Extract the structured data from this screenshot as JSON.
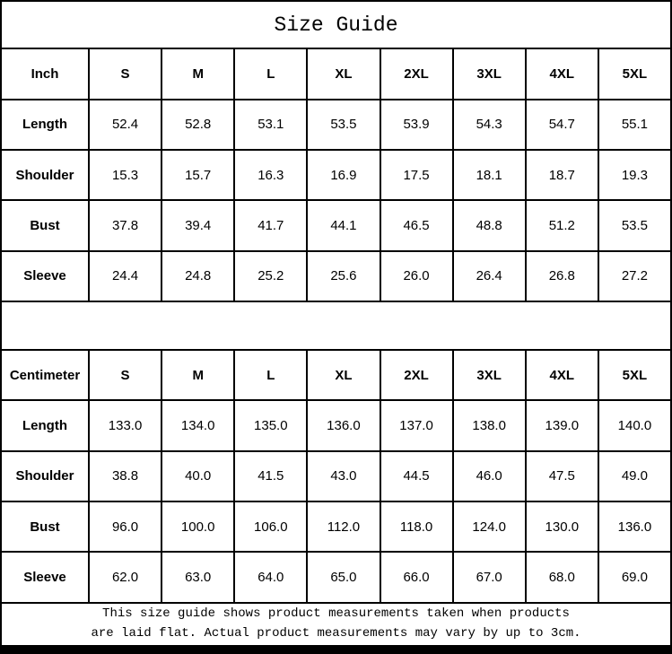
{
  "title": "Size Guide",
  "tables": [
    {
      "unit_label": "Inch",
      "sizes": [
        "S",
        "M",
        "L",
        "XL",
        "2XL",
        "3XL",
        "4XL",
        "5XL"
      ],
      "rows": [
        {
          "label": "Length",
          "values": [
            "52.4",
            "52.8",
            "53.1",
            "53.5",
            "53.9",
            "54.3",
            "54.7",
            "55.1"
          ]
        },
        {
          "label": "Shoulder",
          "values": [
            "15.3",
            "15.7",
            "16.3",
            "16.9",
            "17.5",
            "18.1",
            "18.7",
            "19.3"
          ]
        },
        {
          "label": "Bust",
          "values": [
            "37.8",
            "39.4",
            "41.7",
            "44.1",
            "46.5",
            "48.8",
            "51.2",
            "53.5"
          ]
        },
        {
          "label": "Sleeve",
          "values": [
            "24.4",
            "24.8",
            "25.2",
            "25.6",
            "26.0",
            "26.4",
            "26.8",
            "27.2"
          ]
        }
      ]
    },
    {
      "unit_label": "Centimeter",
      "sizes": [
        "S",
        "M",
        "L",
        "XL",
        "2XL",
        "3XL",
        "4XL",
        "5XL"
      ],
      "rows": [
        {
          "label": "Length",
          "values": [
            "133.0",
            "134.0",
            "135.0",
            "136.0",
            "137.0",
            "138.0",
            "139.0",
            "140.0"
          ]
        },
        {
          "label": "Shoulder",
          "values": [
            "38.8",
            "40.0",
            "41.5",
            "43.0",
            "44.5",
            "46.0",
            "47.5",
            "49.0"
          ]
        },
        {
          "label": "Bust",
          "values": [
            "96.0",
            "100.0",
            "106.0",
            "112.0",
            "118.0",
            "124.0",
            "130.0",
            "136.0"
          ]
        },
        {
          "label": "Sleeve",
          "values": [
            "62.0",
            "63.0",
            "64.0",
            "65.0",
            "66.0",
            "67.0",
            "68.0",
            "69.0"
          ]
        }
      ]
    }
  ],
  "footer": {
    "line1": "This size guide shows product measurements taken when products",
    "line2": "are laid flat. Actual product measurements may vary by up to 3cm."
  },
  "colors": {
    "border": "#000000",
    "background": "#ffffff",
    "text": "#000000"
  }
}
